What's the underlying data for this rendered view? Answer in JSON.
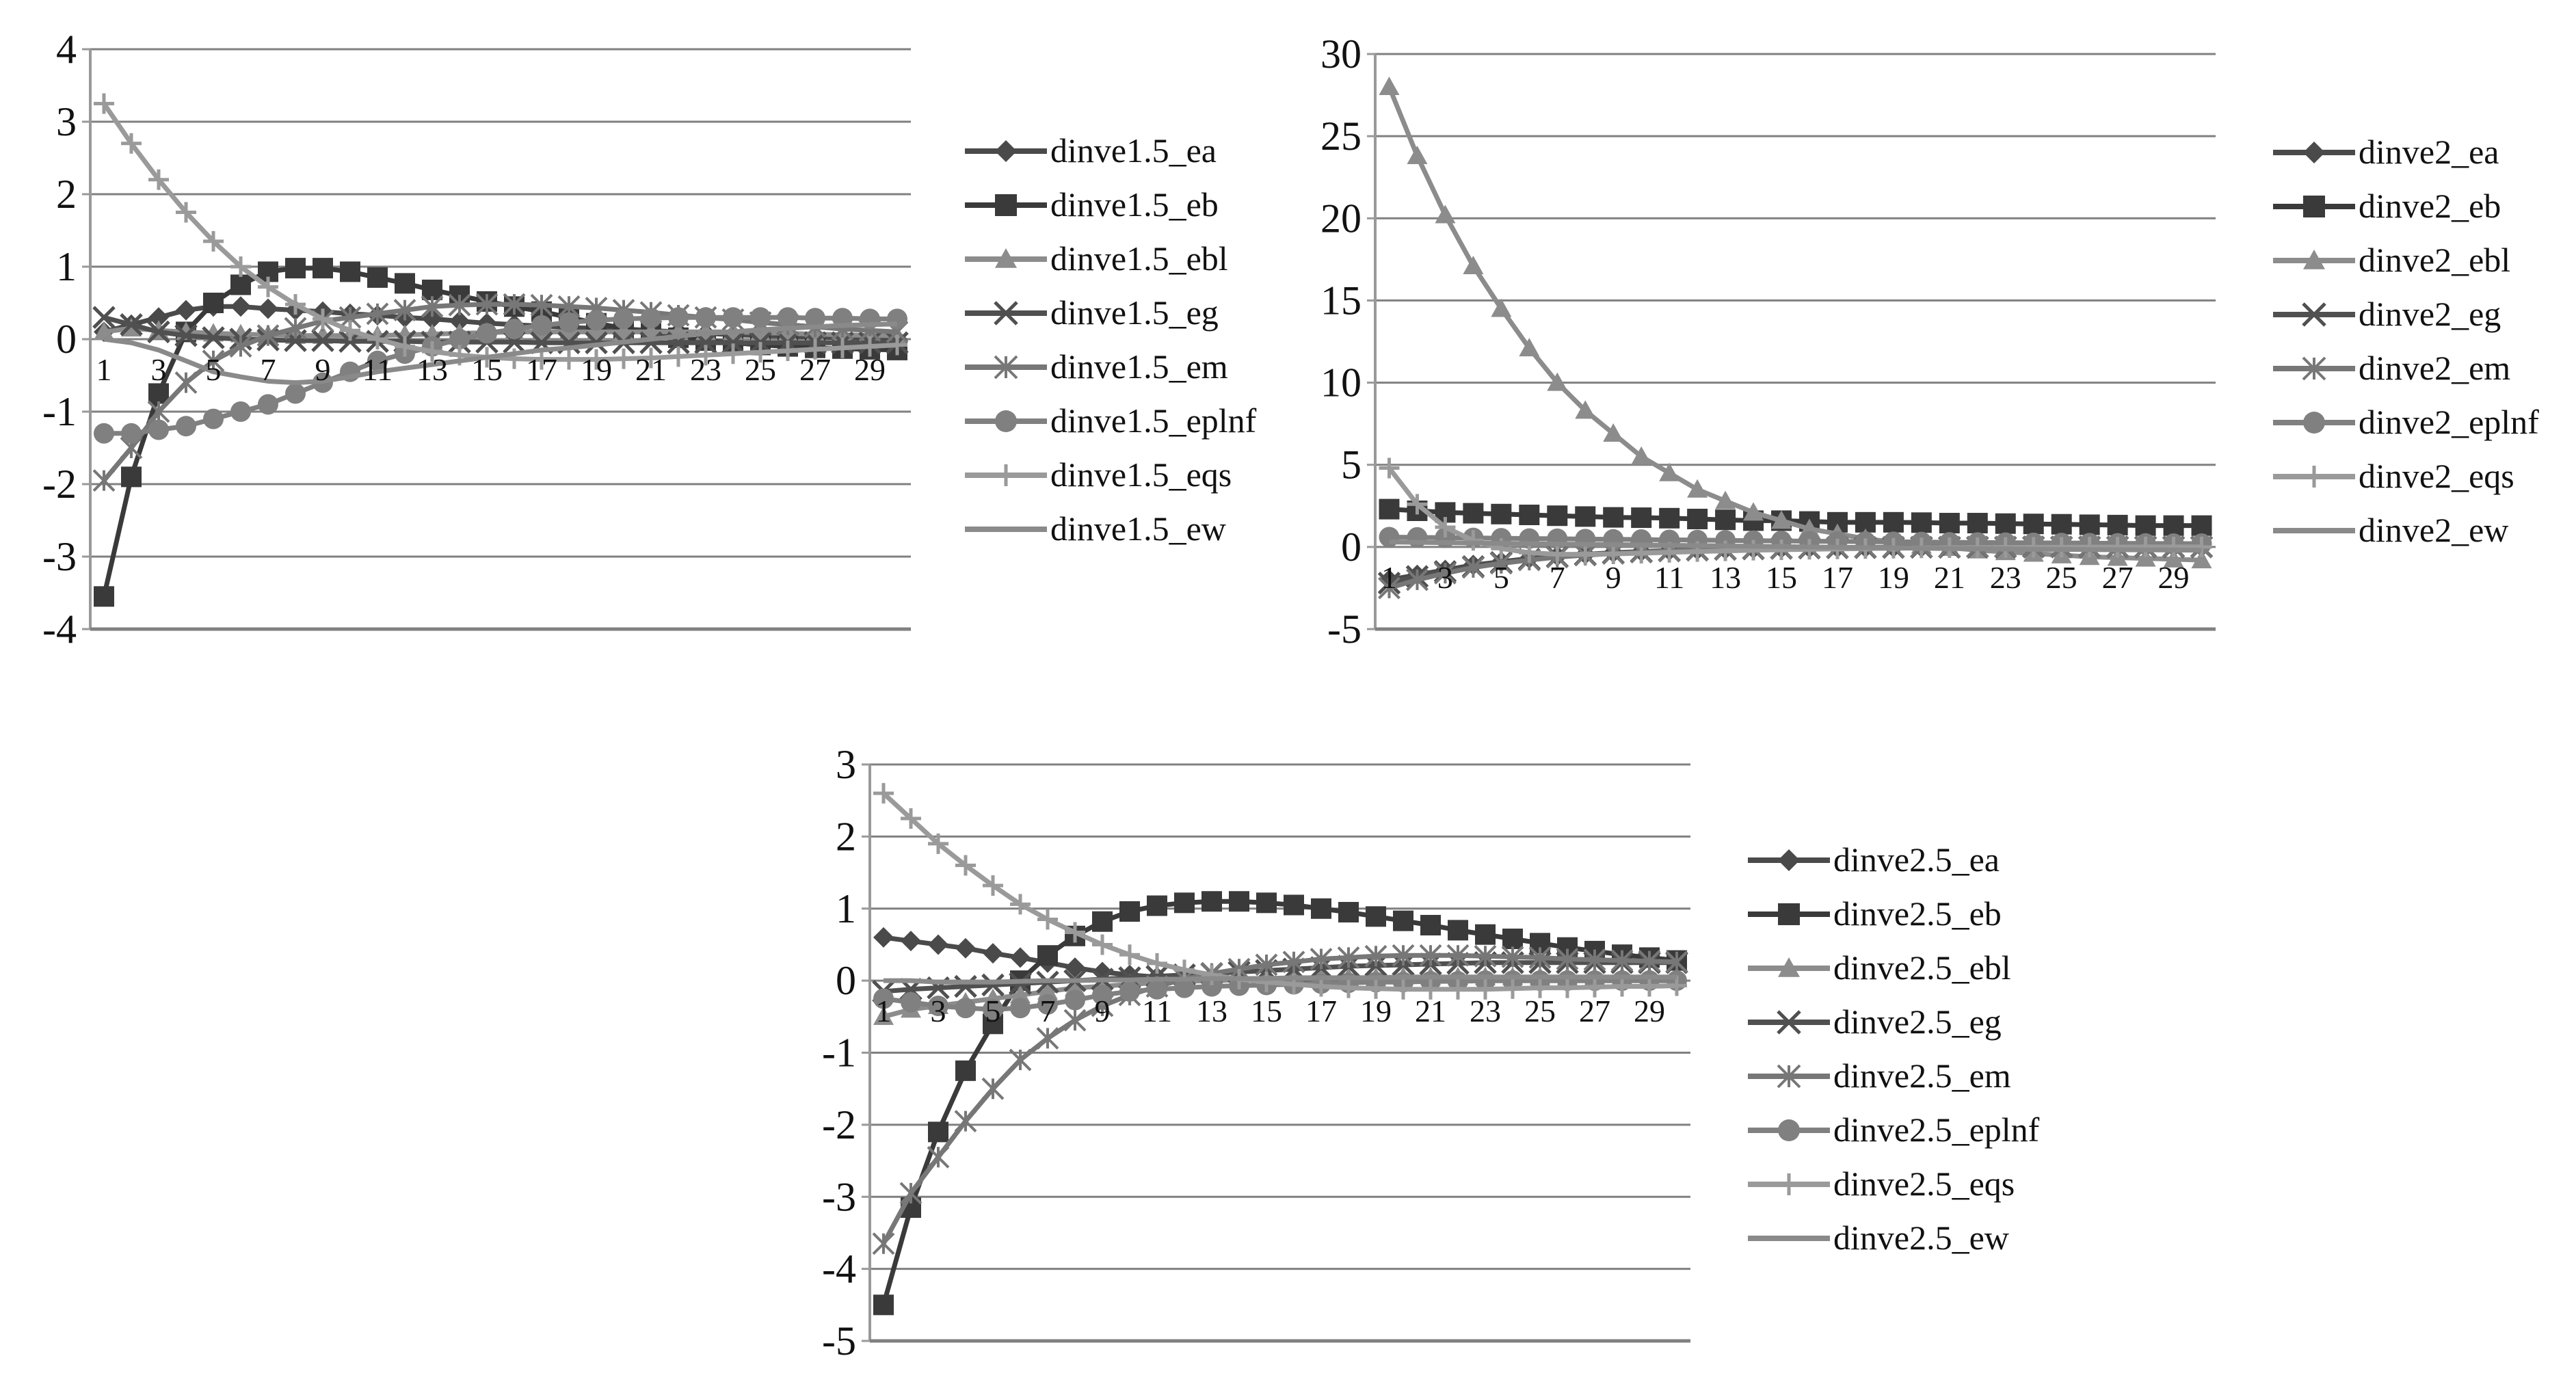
{
  "chart_data": [
    {
      "type": "line",
      "title": "",
      "xlabel": "",
      "ylabel": "",
      "x": [
        1,
        2,
        3,
        4,
        5,
        6,
        7,
        8,
        9,
        10,
        11,
        12,
        13,
        14,
        15,
        16,
        17,
        18,
        19,
        20,
        21,
        22,
        23,
        24,
        25,
        26,
        27,
        28,
        29,
        30
      ],
      "x_tick_labels": [
        "1",
        "3",
        "5",
        "7",
        "9",
        "11",
        "13",
        "15",
        "17",
        "19",
        "21",
        "23",
        "25",
        "27",
        "29"
      ],
      "ylim": [
        -4,
        4
      ],
      "y_ticks": [
        -4,
        -3,
        -2,
        -1,
        0,
        1,
        2,
        3,
        4
      ],
      "grid": true,
      "legend_position": "right",
      "series": [
        {
          "name": "dinve1.5_ea",
          "marker": "diamond",
          "color": "#4a4a4a",
          "values": [
            0.1,
            0.2,
            0.3,
            0.4,
            0.45,
            0.45,
            0.42,
            0.4,
            0.38,
            0.35,
            0.33,
            0.3,
            0.28,
            0.25,
            0.22,
            0.2,
            0.18,
            0.16,
            0.15,
            0.14,
            0.12,
            0.1,
            0.08,
            0.06,
            0.05,
            0.04,
            0.03,
            0.02,
            0.01,
            0.0
          ]
        },
        {
          "name": "dinve1.5_eb",
          "marker": "square",
          "color": "#3a3a3a",
          "values": [
            -3.55,
            -1.9,
            -0.75,
            0.1,
            0.5,
            0.75,
            0.93,
            0.98,
            0.98,
            0.93,
            0.85,
            0.77,
            0.68,
            0.6,
            0.52,
            0.45,
            0.38,
            0.3,
            0.22,
            0.15,
            0.08,
            0.02,
            -0.02,
            -0.05,
            -0.08,
            -0.1,
            -0.12,
            -0.13,
            -0.14,
            -0.15
          ]
        },
        {
          "name": "dinve1.5_ebl",
          "marker": "triangle",
          "color": "#8c8c8c",
          "values": [
            0.1,
            0.15,
            0.12,
            0.1,
            0.08,
            0.07,
            0.06,
            0.05,
            0.05,
            0.05,
            0.05,
            0.06,
            0.07,
            0.08,
            0.09,
            0.1,
            0.1,
            0.1,
            0.1,
            0.1,
            0.1,
            0.1,
            0.1,
            0.1,
            0.09,
            0.08,
            0.07,
            0.06,
            0.05,
            0.05
          ]
        },
        {
          "name": "dinve1.5_eg",
          "marker": "x",
          "color": "#505050",
          "values": [
            0.3,
            0.2,
            0.1,
            0.05,
            0.02,
            0.0,
            -0.01,
            -0.02,
            -0.02,
            -0.03,
            -0.03,
            -0.03,
            -0.04,
            -0.04,
            -0.04,
            -0.04,
            -0.05,
            -0.05,
            -0.05,
            -0.05,
            -0.05,
            -0.05,
            -0.05,
            -0.05,
            -0.05,
            -0.05,
            -0.05,
            -0.05,
            -0.05,
            -0.05
          ]
        },
        {
          "name": "dinve1.5_em",
          "marker": "asterisk",
          "color": "#777777",
          "values": [
            -1.95,
            -1.5,
            -1.0,
            -0.6,
            -0.3,
            -0.1,
            0.05,
            0.15,
            0.25,
            0.3,
            0.35,
            0.4,
            0.45,
            0.47,
            0.48,
            0.48,
            0.47,
            0.45,
            0.43,
            0.4,
            0.37,
            0.33,
            0.3,
            0.27,
            0.23,
            0.2,
            0.17,
            0.14,
            0.12,
            0.1
          ]
        },
        {
          "name": "dinve1.5_eplnf",
          "marker": "circle",
          "color": "#808080",
          "values": [
            -1.3,
            -1.3,
            -1.25,
            -1.2,
            -1.1,
            -1.0,
            -0.9,
            -0.75,
            -0.6,
            -0.45,
            -0.3,
            -0.2,
            -0.1,
            0.0,
            0.08,
            0.14,
            0.19,
            0.23,
            0.26,
            0.28,
            0.29,
            0.3,
            0.3,
            0.3,
            0.3,
            0.3,
            0.29,
            0.29,
            0.28,
            0.28
          ]
        },
        {
          "name": "dinve1.5_eqs",
          "marker": "plus",
          "color": "#9a9a9a",
          "values": [
            3.25,
            2.7,
            2.2,
            1.75,
            1.35,
            1.0,
            0.72,
            0.48,
            0.28,
            0.12,
            0.0,
            -0.1,
            -0.17,
            -0.22,
            -0.25,
            -0.27,
            -0.28,
            -0.28,
            -0.28,
            -0.27,
            -0.26,
            -0.24,
            -0.22,
            -0.2,
            -0.18,
            -0.16,
            -0.14,
            -0.12,
            -0.1,
            -0.08
          ]
        },
        {
          "name": "dinve1.5_ew",
          "marker": "none",
          "color": "#8a8a8a",
          "values": [
            0.0,
            -0.05,
            -0.15,
            -0.3,
            -0.45,
            -0.52,
            -0.58,
            -0.6,
            -0.58,
            -0.52,
            -0.45,
            -0.4,
            -0.35,
            -0.3,
            -0.25,
            -0.2,
            -0.15,
            -0.12,
            -0.08,
            -0.04,
            0.0,
            0.04,
            0.08,
            0.1,
            0.13,
            0.15,
            0.17,
            0.19,
            0.2,
            0.21
          ]
        }
      ]
    },
    {
      "type": "line",
      "title": "",
      "xlabel": "",
      "ylabel": "",
      "x": [
        1,
        2,
        3,
        4,
        5,
        6,
        7,
        8,
        9,
        10,
        11,
        12,
        13,
        14,
        15,
        16,
        17,
        18,
        19,
        20,
        21,
        22,
        23,
        24,
        25,
        26,
        27,
        28,
        29,
        30
      ],
      "x_tick_labels": [
        "1",
        "3",
        "5",
        "7",
        "9",
        "11",
        "13",
        "15",
        "17",
        "19",
        "21",
        "23",
        "25",
        "27",
        "29"
      ],
      "ylim": [
        -5,
        30
      ],
      "y_ticks": [
        -5,
        0,
        5,
        10,
        15,
        20,
        25,
        30
      ],
      "grid": true,
      "legend_position": "right",
      "series": [
        {
          "name": "dinve2_ea",
          "marker": "diamond",
          "color": "#4a4a4a",
          "values": [
            -2.0,
            -1.7,
            -1.4,
            -1.1,
            -0.9,
            -0.7,
            -0.55,
            -0.45,
            -0.35,
            -0.28,
            -0.22,
            -0.18,
            -0.14,
            -0.1,
            -0.08,
            -0.06,
            -0.05,
            -0.04,
            -0.03,
            -0.02,
            -0.02,
            -0.01,
            -0.01,
            0.0,
            0.0,
            0.0,
            0.0,
            0.0,
            0.0,
            0.0
          ]
        },
        {
          "name": "dinve2_eb",
          "marker": "square",
          "color": "#3a3a3a",
          "values": [
            2.3,
            2.2,
            2.1,
            2.05,
            2.0,
            1.95,
            1.9,
            1.85,
            1.8,
            1.78,
            1.75,
            1.7,
            1.65,
            1.6,
            1.6,
            1.55,
            1.5,
            1.5,
            1.5,
            1.48,
            1.45,
            1.45,
            1.42,
            1.4,
            1.38,
            1.35,
            1.33,
            1.3,
            1.3,
            1.3
          ]
        },
        {
          "name": "dinve2_ebl",
          "marker": "triangle",
          "color": "#8c8c8c",
          "values": [
            28.0,
            23.8,
            20.2,
            17.1,
            14.5,
            12.1,
            10.0,
            8.3,
            6.9,
            5.5,
            4.5,
            3.5,
            2.8,
            2.1,
            1.6,
            1.1,
            0.8,
            0.5,
            0.3,
            0.1,
            -0.05,
            -0.2,
            -0.3,
            -0.4,
            -0.5,
            -0.6,
            -0.65,
            -0.7,
            -0.75,
            -0.8
          ]
        },
        {
          "name": "dinve2_eg",
          "marker": "x",
          "color": "#505050",
          "values": [
            -2.2,
            -1.8,
            -1.5,
            -1.2,
            -0.95,
            -0.75,
            -0.6,
            -0.48,
            -0.38,
            -0.3,
            -0.24,
            -0.19,
            -0.15,
            -0.12,
            -0.09,
            -0.07,
            -0.05,
            -0.04,
            -0.03,
            -0.02,
            -0.02,
            -0.01,
            -0.01,
            0.0,
            0.0,
            0.0,
            0.0,
            0.0,
            0.0,
            0.0
          ]
        },
        {
          "name": "dinve2_em",
          "marker": "asterisk",
          "color": "#777777",
          "values": [
            -2.5,
            -2.0,
            -1.6,
            -1.25,
            -1.0,
            -0.8,
            -0.62,
            -0.5,
            -0.4,
            -0.32,
            -0.25,
            -0.2,
            -0.15,
            -0.11,
            -0.08,
            -0.05,
            -0.03,
            -0.02,
            -0.01,
            0.0,
            0.0,
            0.0,
            0.0,
            0.0,
            0.0,
            0.0,
            0.0,
            0.0,
            0.0,
            0.0
          ]
        },
        {
          "name": "dinve2_eplnf",
          "marker": "circle",
          "color": "#808080",
          "values": [
            0.6,
            0.58,
            0.56,
            0.55,
            0.53,
            0.51,
            0.5,
            0.48,
            0.46,
            0.45,
            0.43,
            0.42,
            0.4,
            0.38,
            0.37,
            0.35,
            0.34,
            0.32,
            0.31,
            0.3,
            0.28,
            0.27,
            0.26,
            0.25,
            0.24,
            0.23,
            0.22,
            0.21,
            0.2,
            0.2
          ]
        },
        {
          "name": "dinve2_eqs",
          "marker": "plus",
          "color": "#9a9a9a",
          "values": [
            4.8,
            2.6,
            1.2,
            0.4,
            -0.1,
            -0.35,
            -0.45,
            -0.45,
            -0.42,
            -0.38,
            -0.33,
            -0.28,
            -0.24,
            -0.2,
            -0.17,
            -0.14,
            -0.12,
            -0.1,
            -0.08,
            -0.06,
            -0.05,
            -0.04,
            -0.03,
            -0.02,
            -0.02,
            -0.01,
            -0.01,
            0.0,
            0.0,
            0.0
          ]
        },
        {
          "name": "dinve2_ew",
          "marker": "none",
          "color": "#8a8a8a",
          "values": [
            0.3,
            0.28,
            0.26,
            0.24,
            0.22,
            0.2,
            0.18,
            0.16,
            0.14,
            0.12,
            0.1,
            0.08,
            0.06,
            0.04,
            0.02,
            0.0,
            -0.02,
            -0.04,
            -0.06,
            -0.08,
            -0.1,
            -0.11,
            -0.12,
            -0.14,
            -0.15,
            -0.16,
            -0.17,
            -0.18,
            -0.19,
            -0.2
          ]
        }
      ]
    },
    {
      "type": "line",
      "title": "",
      "xlabel": "",
      "ylabel": "",
      "x": [
        1,
        2,
        3,
        4,
        5,
        6,
        7,
        8,
        9,
        10,
        11,
        12,
        13,
        14,
        15,
        16,
        17,
        18,
        19,
        20,
        21,
        22,
        23,
        24,
        25,
        26,
        27,
        28,
        29,
        30
      ],
      "x_tick_labels": [
        "1",
        "3",
        "5",
        "7",
        "9",
        "11",
        "13",
        "15",
        "17",
        "19",
        "21",
        "23",
        "25",
        "27",
        "29"
      ],
      "ylim": [
        -5,
        3
      ],
      "y_ticks": [
        -5,
        -4,
        -3,
        -2,
        -1,
        0,
        1,
        2,
        3
      ],
      "grid": true,
      "legend_position": "right",
      "series": [
        {
          "name": "dinve2.5_ea",
          "marker": "diamond",
          "color": "#4a4a4a",
          "values": [
            0.6,
            0.55,
            0.5,
            0.45,
            0.38,
            0.32,
            0.25,
            0.18,
            0.12,
            0.08,
            0.05,
            0.03,
            0.02,
            0.01,
            0.0,
            0.0,
            0.0,
            0.0,
            0.0,
            0.0,
            0.0,
            0.0,
            0.0,
            0.0,
            0.0,
            0.0,
            0.0,
            0.0,
            0.0,
            0.0
          ]
        },
        {
          "name": "dinve2.5_eb",
          "marker": "square",
          "color": "#3a3a3a",
          "values": [
            -4.5,
            -3.15,
            -2.1,
            -1.25,
            -0.6,
            0.0,
            0.35,
            0.62,
            0.82,
            0.96,
            1.04,
            1.08,
            1.1,
            1.1,
            1.08,
            1.05,
            1.0,
            0.95,
            0.89,
            0.83,
            0.77,
            0.7,
            0.64,
            0.58,
            0.52,
            0.46,
            0.41,
            0.36,
            0.32,
            0.28
          ]
        },
        {
          "name": "dinve2.5_ebl",
          "marker": "triangle",
          "color": "#8c8c8c",
          "values": [
            -0.5,
            -0.4,
            -0.35,
            -0.3,
            -0.25,
            -0.2,
            -0.15,
            -0.1,
            -0.08,
            -0.05,
            -0.03,
            -0.01,
            0.0,
            0.01,
            0.02,
            0.03,
            0.03,
            0.04,
            0.04,
            0.05,
            0.05,
            0.05,
            0.05,
            0.05,
            0.05,
            0.05,
            0.05,
            0.05,
            0.05,
            0.05
          ]
        },
        {
          "name": "dinve2.5_eg",
          "marker": "x",
          "color": "#505050",
          "values": [
            -0.15,
            -0.12,
            -0.1,
            -0.08,
            -0.06,
            -0.04,
            -0.02,
            0.0,
            0.02,
            0.04,
            0.06,
            0.08,
            0.1,
            0.12,
            0.14,
            0.16,
            0.18,
            0.2,
            0.21,
            0.22,
            0.23,
            0.24,
            0.25,
            0.25,
            0.25,
            0.25,
            0.25,
            0.25,
            0.25,
            0.25
          ]
        },
        {
          "name": "dinve2.5_em",
          "marker": "asterisk",
          "color": "#777777",
          "values": [
            -3.65,
            -2.95,
            -2.45,
            -1.95,
            -1.5,
            -1.1,
            -0.8,
            -0.55,
            -0.35,
            -0.2,
            -0.08,
            0.02,
            0.1,
            0.16,
            0.22,
            0.26,
            0.3,
            0.32,
            0.34,
            0.35,
            0.35,
            0.35,
            0.34,
            0.33,
            0.32,
            0.3,
            0.29,
            0.28,
            0.27,
            0.26
          ]
        },
        {
          "name": "dinve2.5_eplnf",
          "marker": "circle",
          "color": "#808080",
          "values": [
            -0.25,
            -0.3,
            -0.35,
            -0.38,
            -0.4,
            -0.38,
            -0.33,
            -0.27,
            -0.2,
            -0.15,
            -0.12,
            -0.1,
            -0.08,
            -0.07,
            -0.06,
            -0.05,
            -0.04,
            -0.03,
            -0.02,
            -0.02,
            -0.01,
            -0.01,
            0.0,
            0.0,
            0.0,
            0.0,
            0.0,
            0.0,
            0.0,
            0.0
          ]
        },
        {
          "name": "dinve2.5_eqs",
          "marker": "plus",
          "color": "#9a9a9a",
          "values": [
            2.6,
            2.25,
            1.9,
            1.6,
            1.32,
            1.06,
            0.85,
            0.67,
            0.5,
            0.36,
            0.24,
            0.15,
            0.08,
            0.02,
            -0.02,
            -0.05,
            -0.08,
            -0.1,
            -0.11,
            -0.12,
            -0.12,
            -0.12,
            -0.12,
            -0.11,
            -0.1,
            -0.1,
            -0.09,
            -0.08,
            -0.08,
            -0.07
          ]
        },
        {
          "name": "dinve2.5_ew",
          "marker": "none",
          "color": "#8a8a8a",
          "values": [
            0.0,
            0.0,
            -0.02,
            -0.02,
            -0.02,
            -0.01,
            0.0,
            0.0,
            0.01,
            0.01,
            0.02,
            0.02,
            0.03,
            0.03,
            0.03,
            0.04,
            0.04,
            0.04,
            0.04,
            0.05,
            0.05,
            0.05,
            0.05,
            0.05,
            0.05,
            0.05,
            0.05,
            0.05,
            0.05,
            0.05
          ]
        }
      ]
    }
  ]
}
